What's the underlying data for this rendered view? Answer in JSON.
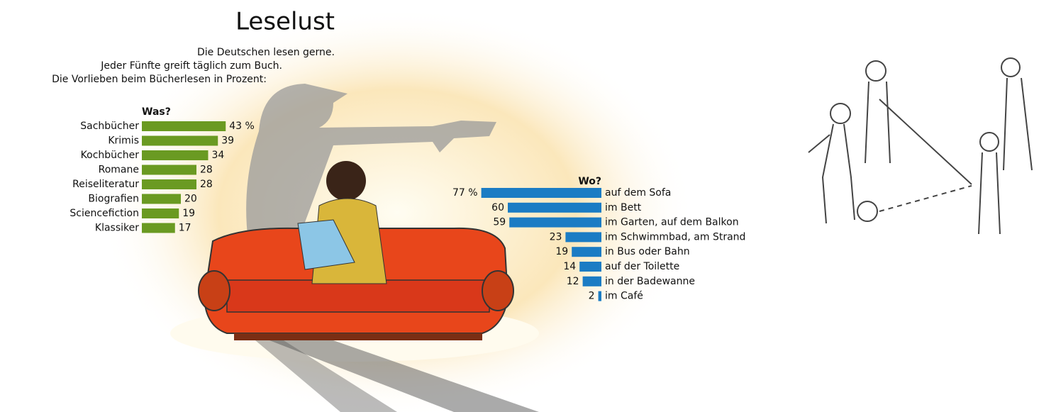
{
  "header": {
    "title": "Leselust",
    "subtitle": [
      "Die Deutschen lesen gerne.",
      "Jeder Fünfte greift täglich zum Buch.",
      "Die Vorlieben beim Bücherlesen in Prozent:"
    ]
  },
  "chart_data": [
    {
      "type": "bar",
      "orientation": "horizontal",
      "title": "Was?",
      "color": "#6a9a22",
      "categories": [
        "Sachbücher",
        "Krimis",
        "Kochbücher",
        "Romane",
        "Reiseliteratur",
        "Biografien",
        "Sciencefiction",
        "Klassiker"
      ],
      "values": [
        43,
        39,
        34,
        28,
        28,
        20,
        19,
        17
      ],
      "value_labels": [
        "43 %",
        "39",
        "34",
        "28",
        "28",
        "20",
        "19",
        "17"
      ]
    },
    {
      "type": "bar",
      "orientation": "horizontal-left",
      "title": "Wo?",
      "color": "#1b7cc4",
      "categories": [
        "auf dem Sofa",
        "im Bett",
        "im Garten, auf dem Balkon",
        "im Schwimmbad, am Strand",
        "in Bus oder Bahn",
        "auf der Toilette",
        "in der Badewanne",
        "im Café"
      ],
      "values": [
        77,
        60,
        59,
        23,
        19,
        14,
        12,
        2
      ],
      "value_labels": [
        "77 %",
        "60",
        "59",
        "23",
        "19",
        "14",
        "12",
        "2"
      ]
    }
  ]
}
